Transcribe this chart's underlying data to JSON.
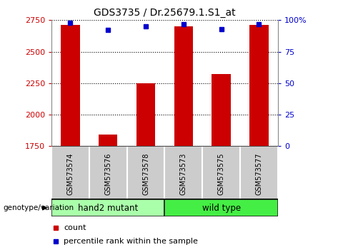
{
  "title": "GDS3735 / Dr.25679.1.S1_at",
  "samples": [
    "GSM573574",
    "GSM573576",
    "GSM573578",
    "GSM573573",
    "GSM573575",
    "GSM573577"
  ],
  "counts": [
    2710,
    1840,
    2250,
    2700,
    2320,
    2710
  ],
  "percentiles": [
    98,
    92,
    95,
    97,
    93,
    97
  ],
  "groups": [
    {
      "label": "hand2 mutant",
      "samples": [
        0,
        1,
        2
      ],
      "color": "#aaffaa"
    },
    {
      "label": "wild type",
      "samples": [
        3,
        4,
        5
      ],
      "color": "#44ee44"
    }
  ],
  "ymin": 1750,
  "ymax": 2750,
  "yticks": [
    1750,
    2000,
    2250,
    2500,
    2750
  ],
  "right_yticks": [
    0,
    25,
    50,
    75,
    100
  ],
  "right_yticklabels": [
    "0",
    "25",
    "50",
    "75",
    "100%"
  ],
  "bar_color": "#cc0000",
  "dot_color": "#0000cc",
  "bar_width": 0.5,
  "background_color": "#ffffff",
  "grid_color": "#000000",
  "tick_label_color_left": "#cc0000",
  "tick_label_color_right": "#0000cc",
  "genotype_label": "genotype/variation",
  "legend_count_label": "count",
  "legend_pct_label": "percentile rank within the sample",
  "figsize": [
    4.8,
    3.54
  ],
  "dpi": 100,
  "label_bg": "#cccccc",
  "cell_border_color": "#ffffff",
  "group_border_color": "#222222"
}
